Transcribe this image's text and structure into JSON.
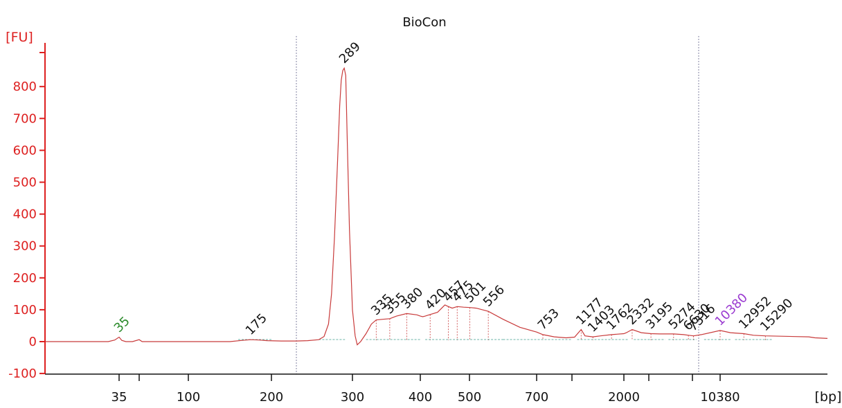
{
  "chart_data": {
    "type": "line",
    "title": "BioCon",
    "ylabel": "[FU]",
    "xlabel": "[bp]",
    "ylim": [
      -100,
      900
    ],
    "grid": false,
    "y_ticks": [
      -100,
      0,
      100,
      200,
      300,
      400,
      500,
      600,
      700,
      800
    ],
    "x_ticks": [
      "35",
      "",
      "100",
      "200",
      "300",
      "400",
      "500",
      "700",
      "",
      "2000",
      "",
      "",
      "10380"
    ],
    "x_tick_numbers": [
      35,
      50,
      100,
      200,
      300,
      400,
      500,
      700,
      1000,
      2000,
      3000,
      7000,
      10380
    ],
    "reference_lines_bp": [
      225,
      8800
    ],
    "colors": {
      "axis": "#dd1f1f",
      "trace": "#c83a3a",
      "baseline": "#3a9a8a",
      "marker_label": "#2a8a2a",
      "upper_marker_label": "#9a3ad0",
      "peak_label": "#111111",
      "ref_line": "#8080a0"
    },
    "series": [
      {
        "x": [
          1,
          10,
          20,
          30,
          33,
          35,
          37,
          40,
          45,
          50,
          53,
          60,
          80,
          100,
          120,
          150,
          165,
          175,
          185,
          195,
          210,
          225,
          240,
          255,
          262,
          268,
          272,
          276,
          280,
          283,
          285,
          287,
          289,
          291,
          293,
          296,
          300,
          304,
          307,
          312,
          320,
          328,
          335,
          345,
          355,
          365,
          380,
          395,
          400,
          405,
          410,
          420,
          435,
          450,
          457,
          465,
          475,
          488,
          501,
          520,
          556,
          600,
          650,
          700,
          753,
          850,
          950,
          1050,
          1177,
          1250,
          1403,
          1550,
          1762,
          2000,
          2100,
          2332,
          2700,
          3195,
          4000,
          5274,
          6200,
          6630,
          7316,
          9000,
          10380,
          11500,
          12952,
          14000,
          15290,
          20000,
          30000,
          50000
        ],
        "y": [
          0,
          0,
          0,
          0,
          5,
          14,
          4,
          0,
          0,
          6,
          0,
          0,
          0,
          0,
          0,
          0,
          4,
          6,
          5,
          3,
          2,
          2,
          3,
          6,
          16,
          55,
          150,
          330,
          560,
          740,
          820,
          850,
          858,
          835,
          640,
          350,
          100,
          18,
          -10,
          0,
          25,
          55,
          68,
          70,
          72,
          80,
          88,
          84,
          80,
          78,
          80,
          85,
          92,
          115,
          110,
          105,
          110,
          108,
          107,
          105,
          95,
          70,
          45,
          30,
          22,
          15,
          12,
          14,
          38,
          18,
          15,
          18,
          22,
          25,
          28,
          38,
          28,
          25,
          24,
          24,
          22,
          20,
          18,
          22,
          35,
          28,
          25,
          20,
          18,
          15,
          12,
          10
        ]
      }
    ],
    "peaks": [
      {
        "label": "35",
        "bp": 35,
        "fu": 14,
        "kind": "marker"
      },
      {
        "label": "175",
        "bp": 175,
        "fu": 6,
        "kind": "peak"
      },
      {
        "label": "289",
        "bp": 289,
        "fu": 858,
        "kind": "peak"
      },
      {
        "label": "335",
        "bp": 335,
        "fu": 68,
        "kind": "peak"
      },
      {
        "label": "355",
        "bp": 355,
        "fu": 72,
        "kind": "peak"
      },
      {
        "label": "380",
        "bp": 380,
        "fu": 88,
        "kind": "peak"
      },
      {
        "label": "420",
        "bp": 420,
        "fu": 85,
        "kind": "peak"
      },
      {
        "label": "457",
        "bp": 457,
        "fu": 110,
        "kind": "peak"
      },
      {
        "label": "475",
        "bp": 475,
        "fu": 110,
        "kind": "peak"
      },
      {
        "label": "501",
        "bp": 501,
        "fu": 107,
        "kind": "peak"
      },
      {
        "label": "556",
        "bp": 556,
        "fu": 95,
        "kind": "peak"
      },
      {
        "label": "753",
        "bp": 753,
        "fu": 22,
        "kind": "peak"
      },
      {
        "label": "1177",
        "bp": 1177,
        "fu": 38,
        "kind": "peak"
      },
      {
        "label": "1403",
        "bp": 1403,
        "fu": 15,
        "kind": "peak"
      },
      {
        "label": "1762",
        "bp": 1762,
        "fu": 22,
        "kind": "peak"
      },
      {
        "label": "2332",
        "bp": 2332,
        "fu": 38,
        "kind": "peak"
      },
      {
        "label": "3195",
        "bp": 3195,
        "fu": 25,
        "kind": "peak"
      },
      {
        "label": "5274",
        "bp": 5274,
        "fu": 24,
        "kind": "peak"
      },
      {
        "label": "6630",
        "bp": 6630,
        "fu": 20,
        "kind": "peak"
      },
      {
        "label": "7316",
        "bp": 7316,
        "fu": 18,
        "kind": "peak"
      },
      {
        "label": "10380",
        "bp": 10380,
        "fu": 35,
        "kind": "upper_marker"
      },
      {
        "label": "12952",
        "bp": 12952,
        "fu": 25,
        "kind": "peak"
      },
      {
        "label": "15290",
        "bp": 15290,
        "fu": 18,
        "kind": "peak"
      }
    ]
  }
}
